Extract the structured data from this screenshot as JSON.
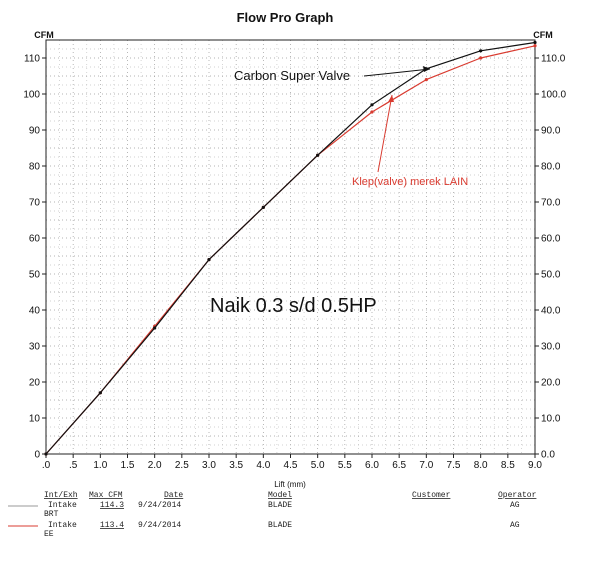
{
  "chart_data": {
    "type": "line",
    "title": "Flow Pro Graph",
    "xlabel": "Lift (mm)",
    "ylabel_left": "CFM",
    "ylabel_right": "CFM",
    "xlim": [
      0,
      9
    ],
    "ylim": [
      0,
      115
    ],
    "grid": true,
    "x_ticks": [
      ".0",
      ".5",
      "1.0",
      "1.5",
      "2.0",
      "2.5",
      "3.0",
      "3.5",
      "4.0",
      "4.5",
      "5.0",
      "5.5",
      "6.0",
      "6.5",
      "7.0",
      "7.5",
      "8.0",
      "8.5",
      "9.0"
    ],
    "y_ticks_left": [
      "0",
      "10",
      "20",
      "30",
      "40",
      "50",
      "60",
      "70",
      "80",
      "90",
      "100",
      "110"
    ],
    "y_ticks_right": [
      "0.0",
      "10.0",
      "20.0",
      "30.0",
      "40.0",
      "50.0",
      "60.0",
      "70.0",
      "80.0",
      "90.0",
      "100.0",
      "110.0"
    ],
    "series": [
      {
        "name": "Carbon Super Valve",
        "color": "#111111",
        "x": [
          0,
          1,
          2,
          3,
          4,
          5,
          6,
          7,
          8,
          9
        ],
        "y": [
          0,
          17,
          35,
          54,
          68.5,
          83,
          97,
          107,
          112,
          114.3
        ]
      },
      {
        "name": "Klep(valve) merek LAIN",
        "color": "#d93b30",
        "x": [
          0,
          1,
          2,
          3,
          4,
          5,
          6,
          7,
          8,
          9
        ],
        "y": [
          0,
          17,
          35.5,
          54,
          68.5,
          83,
          95,
          104,
          110,
          113.4
        ]
      }
    ],
    "annotations": [
      {
        "text": "Carbon Super Valve",
        "color": "#111111"
      },
      {
        "text": "Klep(valve) merek LAIN",
        "color": "#d93b30"
      },
      {
        "text": "Naik 0.3 s/d 0.5HP",
        "color": "#111111"
      }
    ]
  },
  "footer": {
    "headers": {
      "int_exh": "Int/Exh",
      "max_cfm": "Max CFM",
      "date": "Date",
      "model": "Model",
      "customer": "Customer",
      "operator": "Operator"
    },
    "rows": [
      {
        "int_exh": "Intake",
        "sub": "BRT",
        "max_cfm": "114.3",
        "date": "9/24/2014",
        "model": "BLADE",
        "customer": "",
        "operator": "AG",
        "line_color": "#555555"
      },
      {
        "int_exh": "Intake",
        "sub": "EE",
        "max_cfm": "113.4",
        "date": "9/24/2014",
        "model": "BLADE",
        "customer": "",
        "operator": "AG",
        "line_color": "#d93b30"
      }
    ]
  }
}
